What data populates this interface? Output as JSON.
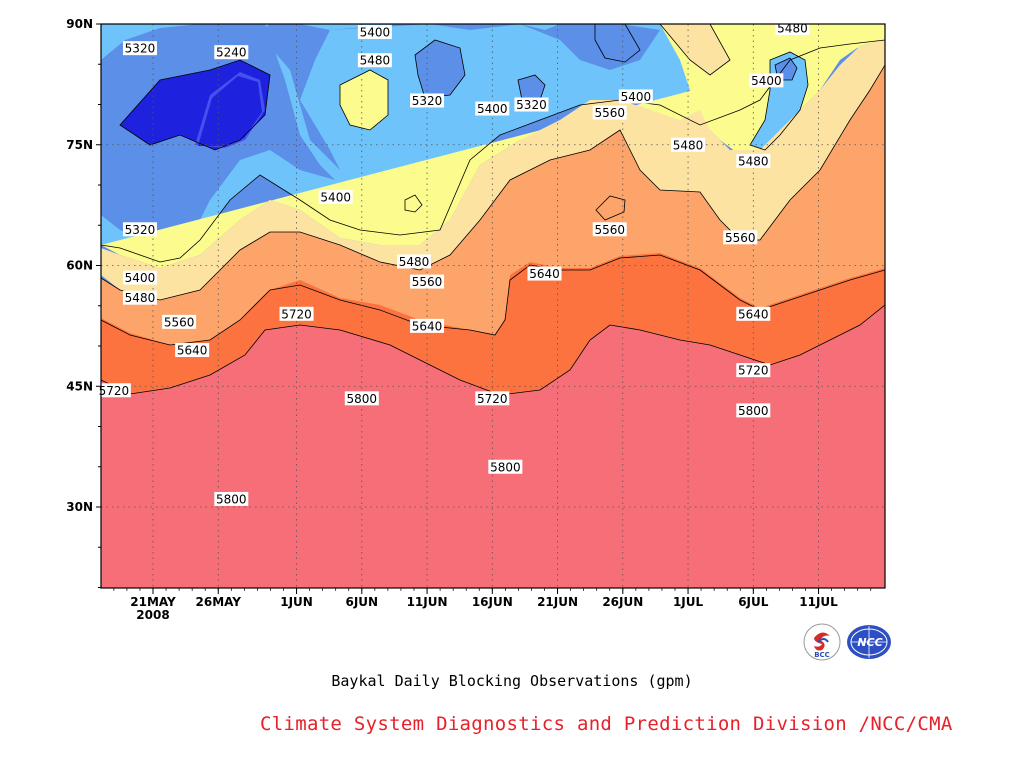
{
  "chart_data": {
    "type": "contour",
    "title": "Baykal Daily Blocking Observations (gpm)",
    "x_ticks": [
      "21MAY",
      "26MAY",
      "1JUN",
      "6JUN",
      "11JUN",
      "16JUN",
      "21JUN",
      "26JUN",
      "1JUL",
      "6JUL",
      "11JUL"
    ],
    "x_year_label": "2008",
    "y_ticks": [
      "90N",
      "75N",
      "60N",
      "45N",
      "30N"
    ],
    "levels": [
      5240,
      5320,
      5400,
      5480,
      5560,
      5640,
      5720,
      5800
    ],
    "colors": {
      "lt5240": "#1e22de",
      "5240": "#4650ee",
      "5320": "#5b8fe8",
      "5400": "#6ec4fa",
      "5480": "#fbfb8e",
      "5560": "#fde3a2",
      "5640": "#fca46a",
      "5720": "#fc7340",
      "5800": "#f66e78"
    },
    "contour_labels": [
      {
        "text": "5320",
        "date": "20MAY",
        "lat": 87
      },
      {
        "text": "5240",
        "date": "27MAY",
        "lat": 86.5
      },
      {
        "text": "5400",
        "date": "7JUN",
        "lat": 89
      },
      {
        "text": "5480",
        "date": "7JUN",
        "lat": 85.5
      },
      {
        "text": "5320",
        "date": "11JUN",
        "lat": 80.5
      },
      {
        "text": "5400",
        "date": "16JUN",
        "lat": 79.5
      },
      {
        "text": "5320",
        "date": "19JUN",
        "lat": 80
      },
      {
        "text": "5400",
        "date": "27JUN",
        "lat": 81
      },
      {
        "text": "5560",
        "date": "25JUN",
        "lat": 79
      },
      {
        "text": "5480",
        "date": "1JUL",
        "lat": 75
      },
      {
        "text": "5480",
        "date": "9JUL",
        "lat": 89.5
      },
      {
        "text": "5400",
        "date": "7JUL",
        "lat": 83
      },
      {
        "text": "5480",
        "date": "6JUL",
        "lat": 73
      },
      {
        "text": "5400",
        "date": "4JUN",
        "lat": 68.5
      },
      {
        "text": "5320",
        "date": "20MAY",
        "lat": 64.5
      },
      {
        "text": "5560",
        "date": "25JUN",
        "lat": 64.5
      },
      {
        "text": "5560",
        "date": "5JUL",
        "lat": 63.5
      },
      {
        "text": "5400",
        "date": "20MAY",
        "lat": 58.5
      },
      {
        "text": "5480",
        "date": "20MAY",
        "lat": 56
      },
      {
        "text": "5480",
        "date": "10JUN",
        "lat": 60.5
      },
      {
        "text": "5560",
        "date": "11JUN",
        "lat": 58
      },
      {
        "text": "5640",
        "date": "20JUN",
        "lat": 59
      },
      {
        "text": "5560",
        "date": "23MAY",
        "lat": 53
      },
      {
        "text": "5640",
        "date": "24MAY",
        "lat": 49.5
      },
      {
        "text": "5720",
        "date": "1JUN",
        "lat": 54
      },
      {
        "text": "5640",
        "date": "11JUN",
        "lat": 52.5
      },
      {
        "text": "5640",
        "date": "6JUL",
        "lat": 54
      },
      {
        "text": "5720",
        "date": "6JUL",
        "lat": 47
      },
      {
        "text": "5720",
        "date": "18MAY",
        "lat": 44.5
      },
      {
        "text": "5800",
        "date": "6JUN",
        "lat": 43.5
      },
      {
        "text": "5720",
        "date": "16JUN",
        "lat": 43.5
      },
      {
        "text": "5800",
        "date": "6JUL",
        "lat": 42
      },
      {
        "text": "5800",
        "date": "17JUN",
        "lat": 35
      },
      {
        "text": "5800",
        "date": "27MAY",
        "lat": 31
      }
    ]
  },
  "footer": {
    "title": "Baykal Daily Blocking Observations (gpm)",
    "credit": "Climate System Diagnostics and Prediction Division /NCC/CMA"
  },
  "logos": [
    {
      "name": "bcc-logo",
      "text": "BCC"
    },
    {
      "name": "ncc-logo",
      "text": "NCC"
    }
  ]
}
